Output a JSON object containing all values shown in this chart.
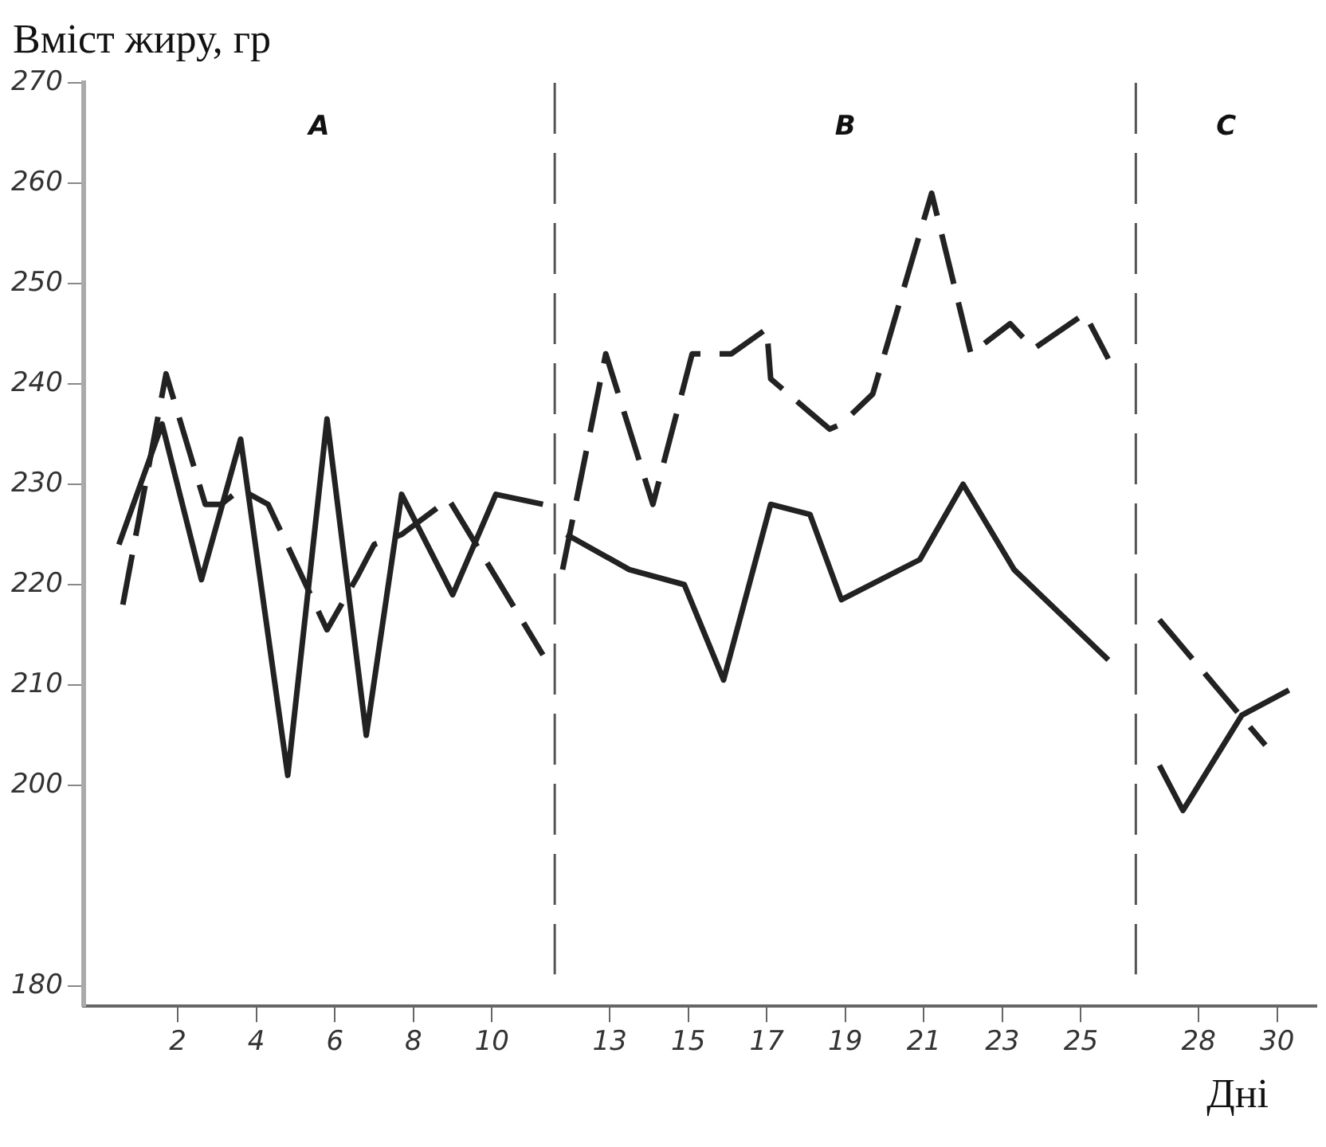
{
  "chart_data": {
    "type": "line",
    "ylabel": "Вміст жиру, гр",
    "xlabel": "Дні",
    "xlim": [
      -0.4,
      31
    ],
    "xticks": [
      2,
      4,
      6,
      8,
      10,
      13,
      15,
      17,
      19,
      21,
      23,
      25,
      28,
      30
    ],
    "ylim": [
      178,
      270
    ],
    "yticks": [
      180,
      200,
      210,
      220,
      230,
      240,
      250,
      260,
      270
    ],
    "grid": false,
    "legend": false,
    "marker": "none",
    "series": [
      {
        "color": "#222222",
        "line_style": "solid",
        "x": [
          0.5,
          1.6,
          2.6,
          3.6,
          4.8,
          5.8,
          6.8,
          7.7,
          9.0,
          10.1,
          11.3
        ],
        "values": [
          224,
          236,
          220.5,
          234.5,
          201,
          236.5,
          205,
          229,
          219,
          229,
          228
        ]
      },
      {
        "color": "#222222",
        "line_style": "solid",
        "x": [
          11.9,
          13.5,
          14.9,
          15.9,
          17.1,
          18.1,
          18.9,
          20.9,
          22.0,
          23.3,
          25.7
        ],
        "values": [
          225,
          221.5,
          220,
          210.5,
          228,
          227,
          218.5,
          222.5,
          230,
          221.5,
          212.5
        ]
      },
      {
        "color": "#222222",
        "line_style": "solid",
        "x": [
          27.0,
          27.6,
          29.1,
          30.3
        ],
        "values": [
          202,
          197.5,
          207,
          209.5
        ]
      },
      {
        "color": "#222222",
        "line_style": "dashed",
        "x": [
          0.6,
          1.7,
          2.7,
          3.1,
          3.6,
          4.3,
          5.8,
          6.6,
          7.0,
          7.7,
          8.9,
          11.3
        ],
        "values": [
          218,
          241,
          228,
          228,
          229.5,
          228,
          215.5,
          221,
          224,
          225,
          228.5,
          213
        ]
      },
      {
        "color": "#222222",
        "line_style": "dashed",
        "x": [
          11.8,
          12.9,
          14.1,
          15.1,
          16.1,
          17.0,
          17.1,
          18.6,
          18.9,
          19.7,
          21.2,
          22.2,
          23.2,
          23.8,
          25.1,
          25.7
        ],
        "values": [
          221.5,
          243,
          228,
          243,
          243,
          245.5,
          240.5,
          235.5,
          236,
          239,
          259,
          243,
          246,
          243.5,
          247,
          242.5
        ]
      },
      {
        "color": "#222222",
        "line_style": "dashed",
        "x": [
          27.0,
          29.7
        ],
        "values": [
          216.5,
          204
        ]
      }
    ],
    "ref_lines": [
      {
        "axis": "x",
        "value": 11.6,
        "line_style": "dashed",
        "color": "#555555"
      },
      {
        "axis": "x",
        "value": 26.4,
        "line_style": "dashed",
        "color": "#555555"
      }
    ],
    "annotations": [
      "A",
      "B",
      "C"
    ]
  }
}
